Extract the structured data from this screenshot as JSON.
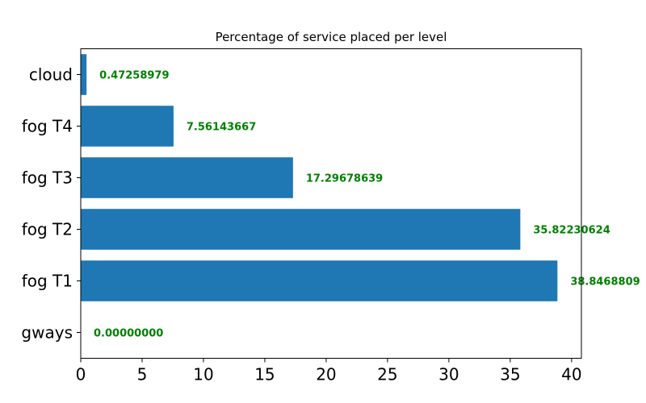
{
  "chart_data": {
    "type": "bar",
    "orientation": "horizontal",
    "title": "Percentage of service placed per level",
    "xlabel": "",
    "ylabel": "",
    "categories": [
      "gways",
      "fog T1",
      "fog T2",
      "fog T3",
      "fog T4",
      "cloud"
    ],
    "values": [
      0.0,
      38.8468809,
      35.82230624,
      17.29678639,
      7.56143667,
      0.47258979
    ],
    "data_labels": [
      "0.00000000",
      "38.8468809",
      "35.82230624",
      "17.29678639",
      "7.56143667",
      "0.47258979"
    ],
    "xlim": [
      0,
      40.8
    ],
    "xticks": [
      0,
      5,
      10,
      15,
      20,
      25,
      30,
      35,
      40
    ],
    "bar_color": "#1f77b4",
    "label_color": "#008000",
    "grid": false,
    "legend": "none"
  }
}
